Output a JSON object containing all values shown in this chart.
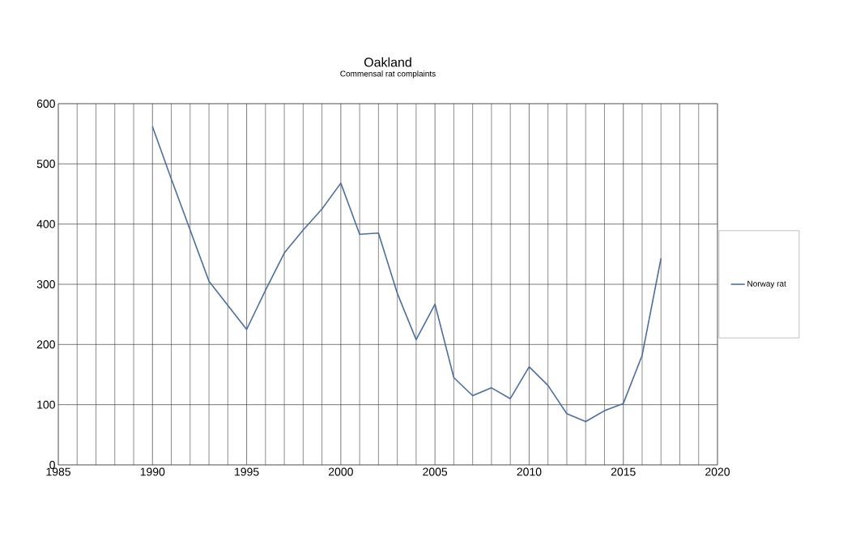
{
  "chart_data": {
    "type": "line",
    "title": "Oakland",
    "subtitle": "Commensal rat complaints",
    "x": [
      1990,
      1991,
      1992,
      1993,
      1994,
      1995,
      1996,
      1997,
      1998,
      1999,
      2000,
      2001,
      2002,
      2003,
      2004,
      2005,
      2006,
      2007,
      2008,
      2009,
      2010,
      2011,
      2012,
      2013,
      2014,
      2015,
      2016,
      2017
    ],
    "series": [
      {
        "name": "Norway rat",
        "color": "#4a6fa0",
        "values": [
          562,
          475,
          390,
          305,
          265,
          225,
          290,
          352,
          390,
          425,
          468,
          383,
          385,
          285,
          208,
          267,
          145,
          115,
          128,
          110,
          163,
          132,
          85,
          72,
          90,
          102,
          182,
          343
        ]
      }
    ],
    "xlim": [
      1985,
      2020
    ],
    "xticks": [
      1985,
      1990,
      1995,
      2000,
      2005,
      2010,
      2015,
      2020
    ],
    "ylim": [
      0,
      600
    ],
    "yticks": [
      0,
      100,
      200,
      300,
      400,
      500,
      600
    ],
    "grid": true,
    "legend": "right",
    "marker": "none",
    "line_style": "solid"
  }
}
